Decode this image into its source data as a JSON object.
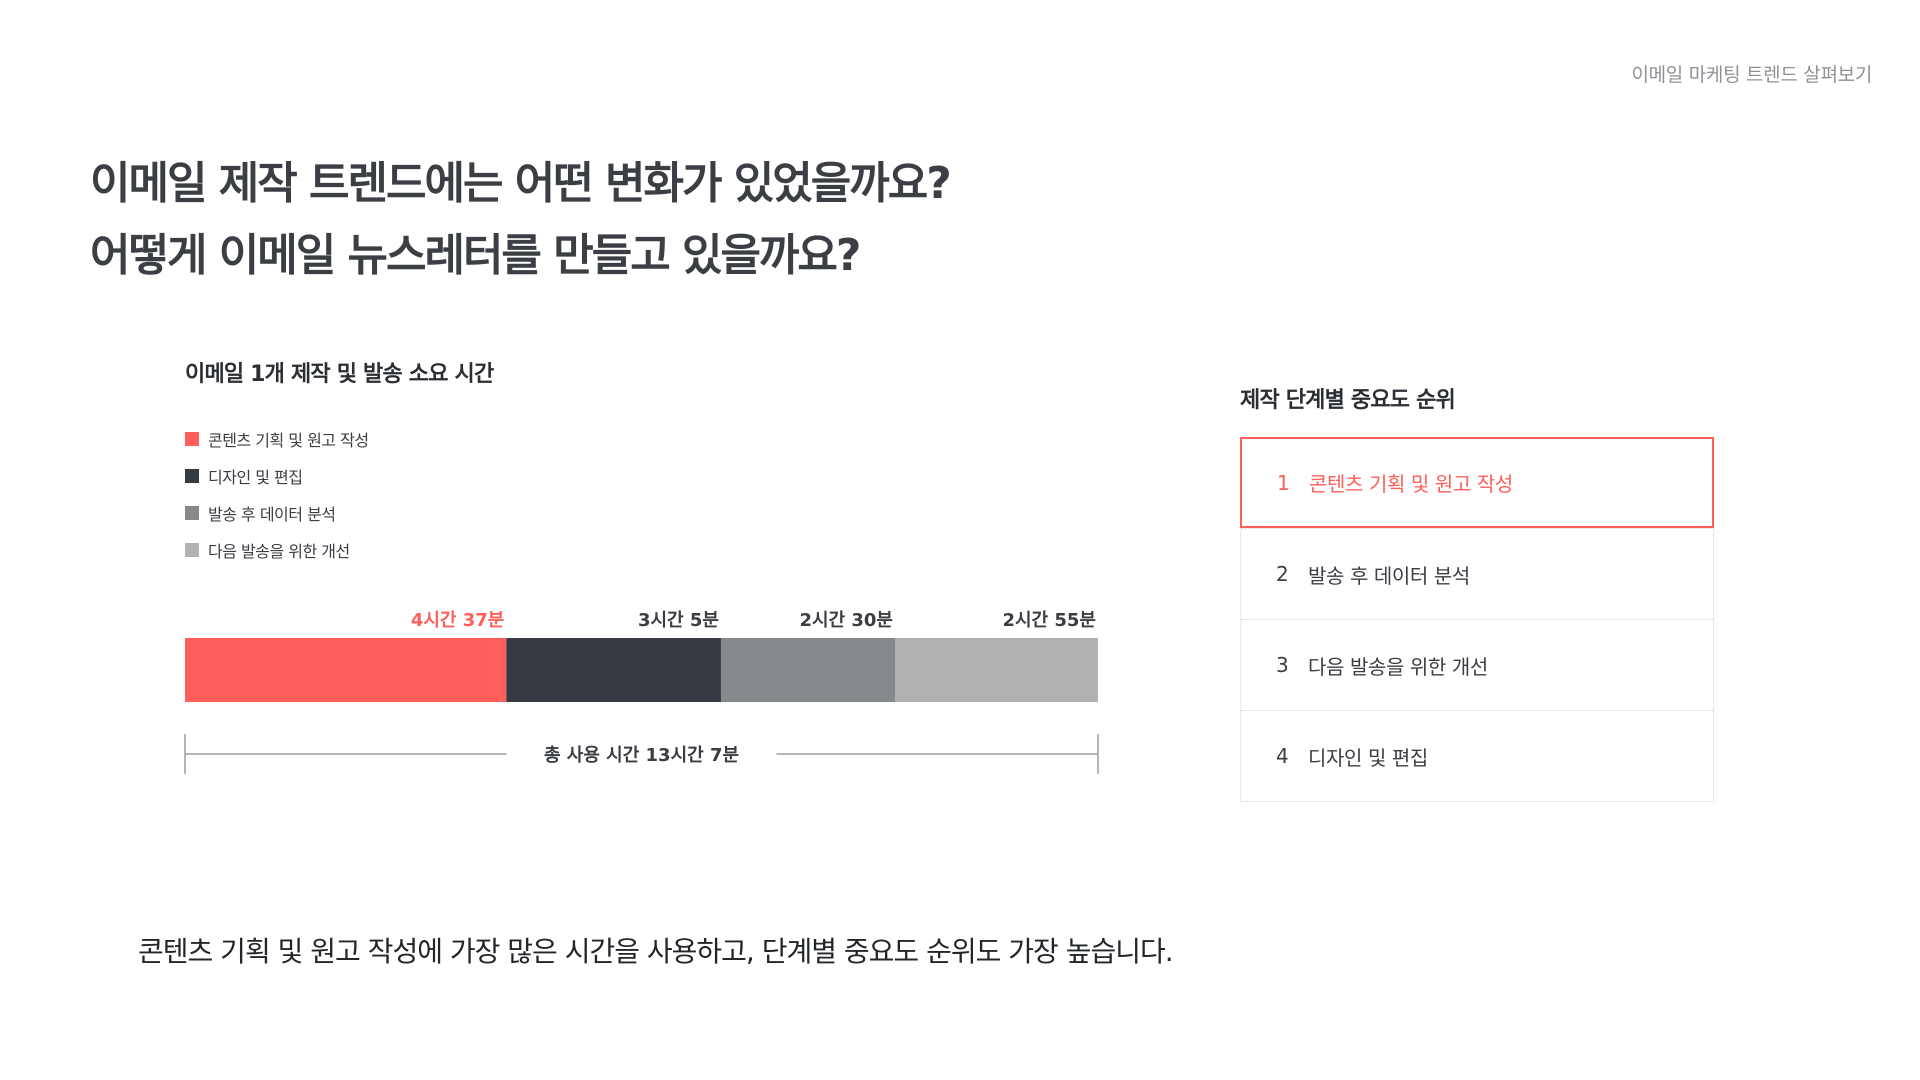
{
  "top_caption": "이메일 마케팅 트렌드 살펴보기",
  "headline": {
    "line1": "이메일 제작 트렌드에는 어떤 변화가 있었을까요?",
    "line2": "어떻게 이메일 뉴스레터를 만들고 있을까요?"
  },
  "chart_data": {
    "type": "bar",
    "orientation": "horizontal-stacked",
    "title": "이메일 1개 제작 및 발송 소요 시간",
    "series": [
      {
        "name": "콘텐츠 기획 및 원고 작성",
        "value_minutes": 277,
        "label": "4시간 37분",
        "color": "#ff5f5a",
        "highlight": true
      },
      {
        "name": "디자인 및 편집",
        "value_minutes": 185,
        "label": "3시간 5분",
        "color": "#363a42"
      },
      {
        "name": "발송 후 데이터 분석",
        "value_minutes": 150,
        "label": "2시간 30분",
        "color": "#86898c"
      },
      {
        "name": "다음 발송을 위한 개선",
        "value_minutes": 175,
        "label": "2시간 55분",
        "color": "#b0b1b3"
      }
    ],
    "total_label": "총 사용 시간 13시간 7분",
    "legend_position": "top-left",
    "grid": false
  },
  "ranking": {
    "title": "제작 단계별 중요도 순위",
    "items": [
      {
        "rank": "1",
        "label": "콘텐츠 기획 및 원고 작성"
      },
      {
        "rank": "2",
        "label": "발송 후 데이터 분석"
      },
      {
        "rank": "3",
        "label": "다음 발송을 위한 개선"
      },
      {
        "rank": "4",
        "label": "디자인 및 편집"
      }
    ]
  },
  "footer": "콘텐츠 기획 및 원고 작성에 가장 많은 시간을 사용하고, 단계별 중요도 순위도 가장 높습니다.",
  "colors": {
    "accent": "#ff5f5a",
    "dark": "#363a42",
    "mid": "#86898c",
    "light": "#b0b1b3"
  }
}
